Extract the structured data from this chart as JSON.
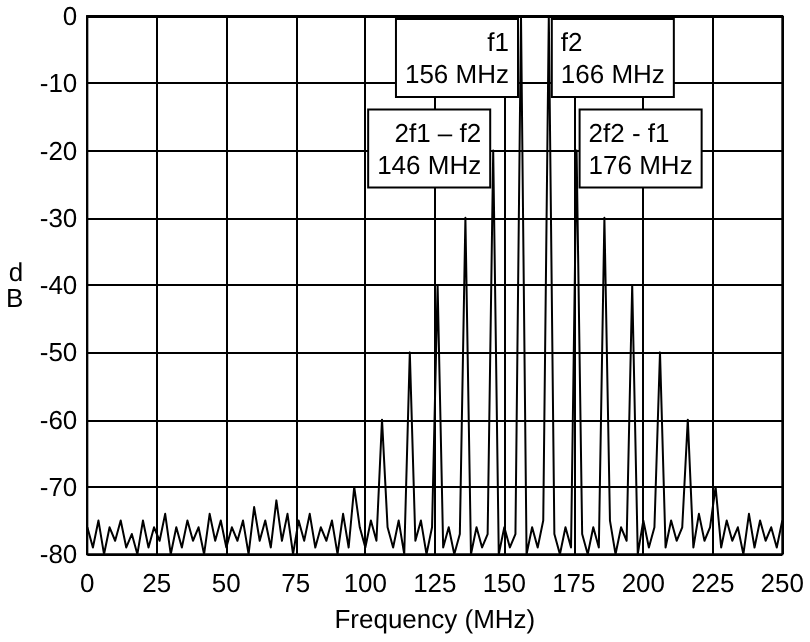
{
  "chart_data": {
    "type": "line",
    "xlabel": "Frequency (MHz)",
    "ylabel": "dB",
    "color": "#000000",
    "marker": "none",
    "grid": true,
    "xlim": [
      0,
      250
    ],
    "xticks": [
      0,
      25,
      50,
      75,
      100,
      125,
      150,
      175,
      200,
      225,
      250
    ],
    "ylim": [
      -80,
      0
    ],
    "yticks": [
      -80,
      -70,
      -60,
      -50,
      -40,
      -30,
      -20,
      -10,
      0
    ],
    "x": [
      0,
      2,
      4,
      6,
      8,
      10,
      12,
      14,
      16,
      18,
      20,
      22,
      24,
      26,
      28,
      30,
      32,
      34,
      36,
      38,
      40,
      42,
      44,
      46,
      48,
      50,
      52,
      54,
      56,
      58,
      60,
      62,
      64,
      66,
      68,
      70,
      72,
      74,
      76,
      78,
      80,
      82,
      84,
      86,
      88,
      90,
      92,
      94,
      96,
      98,
      100,
      102,
      104,
      106,
      108,
      110,
      112,
      114,
      116,
      118,
      120,
      122,
      124,
      126,
      128,
      130,
      132,
      134,
      136,
      138,
      140,
      142,
      144,
      146,
      148,
      150,
      152,
      154,
      156,
      158,
      160,
      162,
      164,
      166,
      168,
      170,
      172,
      174,
      176,
      178,
      180,
      182,
      184,
      186,
      188,
      190,
      192,
      194,
      196,
      198,
      200,
      202,
      204,
      206,
      208,
      210,
      212,
      214,
      216,
      218,
      220,
      222,
      224,
      226,
      228,
      230,
      232,
      234,
      236,
      238,
      240,
      242,
      244,
      246,
      248,
      250
    ],
    "values": [
      -76,
      -79,
      -75,
      -80,
      -76,
      -78,
      -75,
      -79,
      -77,
      -80,
      -75,
      -79,
      -76,
      -78,
      -74,
      -80,
      -76,
      -79,
      -75,
      -78,
      -76,
      -80,
      -74,
      -78,
      -75,
      -79,
      -76,
      -78,
      -75,
      -80,
      -73,
      -78,
      -75,
      -79,
      -72,
      -78,
      -74,
      -80,
      -75,
      -78,
      -74,
      -79,
      -76,
      -78,
      -75,
      -80,
      -74,
      -79,
      -70,
      -76,
      -79,
      -75,
      -78,
      -60,
      -76,
      -79,
      -75,
      -80,
      -50,
      -78,
      -75,
      -80,
      -76,
      -40,
      -79,
      -76,
      -80,
      -77,
      -30,
      -80,
      -76,
      -79,
      -77,
      -20,
      -80,
      -76,
      -79,
      -77,
      0,
      -80,
      -76,
      -79,
      -75,
      0,
      -77,
      -80,
      -76,
      -79,
      -20,
      -77,
      -80,
      -76,
      -79,
      -30,
      -75,
      -80,
      -76,
      -78,
      -40,
      -80,
      -75,
      -79,
      -76,
      -50,
      -79,
      -75,
      -78,
      -76,
      -60,
      -79,
      -74,
      -78,
      -76,
      -70,
      -79,
      -75,
      -78,
      -76,
      -80,
      -74,
      -79,
      -75,
      -78,
      -76,
      -79,
      -75
    ],
    "annotations": [
      {
        "text": "f1\n156 MHz",
        "x": 156,
        "y": 0
      },
      {
        "text": "f2\n166 MHz",
        "x": 166,
        "y": 0
      },
      {
        "text": "2f1 – f2\n146 MHz",
        "x": 146,
        "y": -20
      },
      {
        "text": "2f2 - f1\n176 MHz",
        "x": 176,
        "y": -20
      }
    ]
  }
}
